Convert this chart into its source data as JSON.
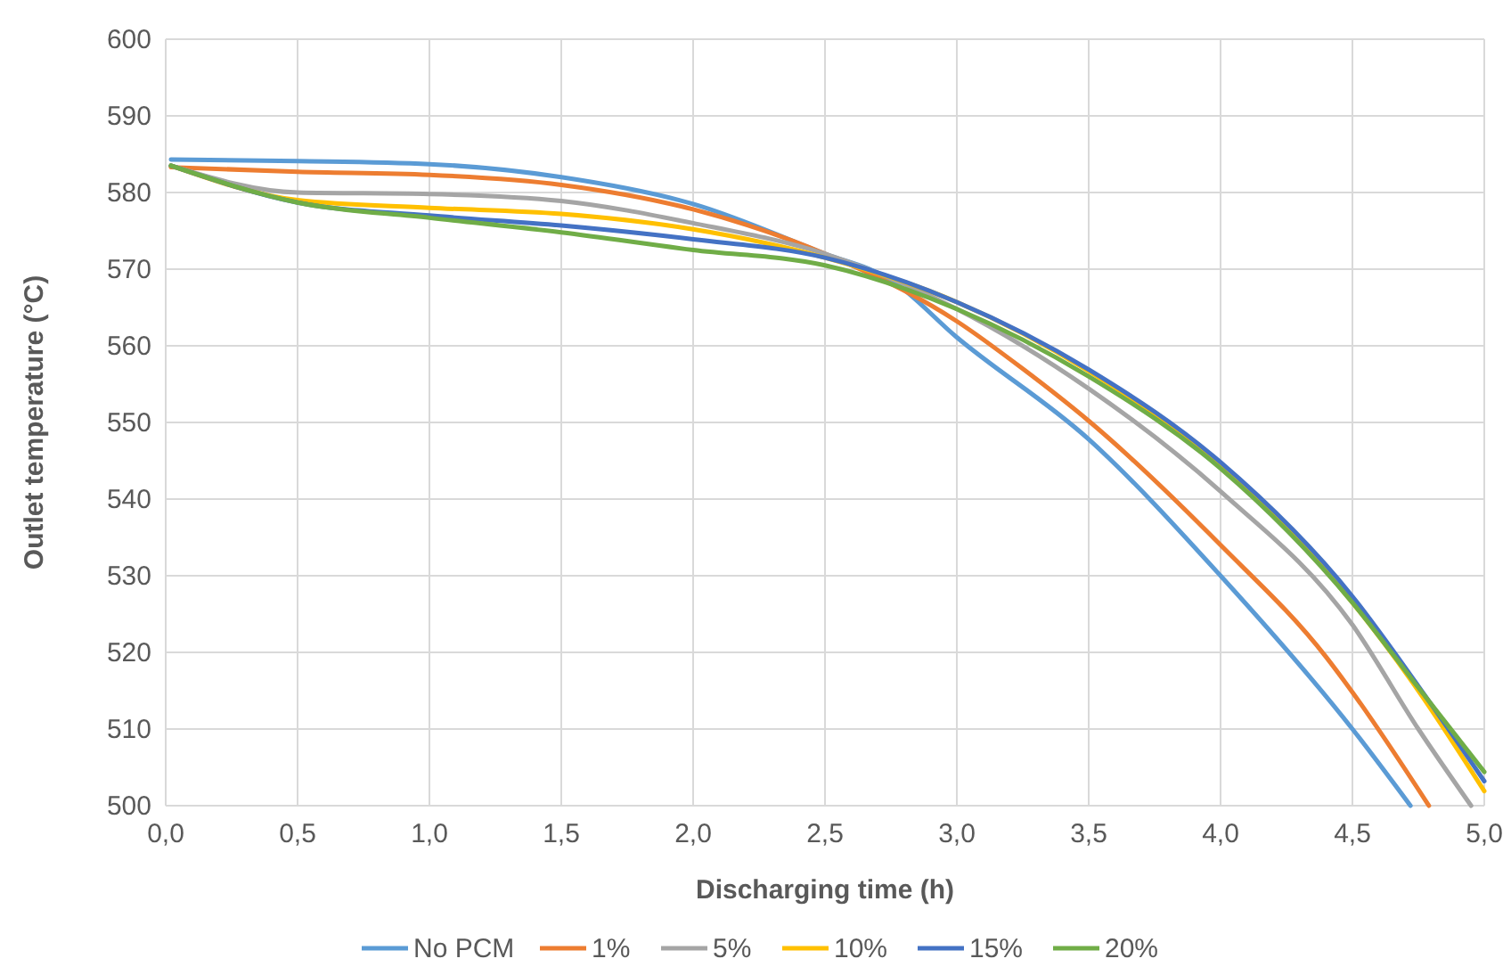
{
  "chart_data": {
    "type": "line",
    "xlabel": "Discharging time (h)",
    "ylabel": "Outlet temperature (°C)",
    "xlim": [
      0,
      5
    ],
    "ylim": [
      500,
      600
    ],
    "xticks": [
      {
        "value": 0,
        "label": "0,0"
      },
      {
        "value": 0.5,
        "label": "0,5"
      },
      {
        "value": 1,
        "label": "1,0"
      },
      {
        "value": 1.5,
        "label": "1,5"
      },
      {
        "value": 2,
        "label": "2,0"
      },
      {
        "value": 2.5,
        "label": "2,5"
      },
      {
        "value": 3,
        "label": "3,0"
      },
      {
        "value": 3.5,
        "label": "3,5"
      },
      {
        "value": 4,
        "label": "4,0"
      },
      {
        "value": 4.5,
        "label": "4,5"
      },
      {
        "value": 5,
        "label": "5,0"
      }
    ],
    "yticks": [
      500,
      510,
      520,
      530,
      540,
      550,
      560,
      570,
      580,
      590,
      600
    ],
    "grid": true,
    "legend": "bottom",
    "marker": "none",
    "line_style": "solid",
    "series": [
      {
        "name": "No PCM",
        "color": "#5b9bd5",
        "x": [
          0.02,
          0.5,
          1,
          1.5,
          2,
          2.5,
          2.75,
          3,
          3.5,
          4,
          4.5,
          4.72
        ],
        "values": [
          584.3,
          584.1,
          583.7,
          582,
          578.5,
          572,
          568.6,
          561.1,
          547.8,
          530,
          510,
          500
        ]
      },
      {
        "name": "1%",
        "color": "#ed7d31",
        "x": [
          0.02,
          0.5,
          1,
          1.5,
          2,
          2.5,
          3,
          3.25,
          3.5,
          4,
          4.4,
          4.5,
          4.79
        ],
        "values": [
          583.3,
          582.7,
          582.3,
          581,
          577.8,
          572,
          563.2,
          557,
          550.2,
          534,
          519.4,
          514.8,
          500
        ]
      },
      {
        "name": "5%",
        "color": "#a5a5a5",
        "x": [
          0.02,
          0.5,
          1,
          1.5,
          2,
          2.5,
          3,
          3.5,
          4,
          4.5,
          4.75,
          4.95
        ],
        "values": [
          583.5,
          580,
          579.8,
          578.9,
          576,
          572,
          564.8,
          554.4,
          541,
          523.6,
          510,
          500
        ]
      },
      {
        "name": "10%",
        "color": "#ffc000",
        "x": [
          0.02,
          0.5,
          1,
          1.5,
          2,
          2.5,
          3,
          3.5,
          4,
          4.5,
          4.75,
          5
        ],
        "values": [
          583.5,
          579,
          578,
          577.2,
          575.2,
          571.5,
          565.7,
          556.7,
          544.4,
          526.5,
          515,
          501.9
        ]
      },
      {
        "name": "15%",
        "color": "#4472c4",
        "x": [
          0.02,
          0.5,
          1,
          1.5,
          2,
          2.5,
          3,
          3.5,
          4,
          4.5,
          4.75,
          5
        ],
        "values": [
          583.5,
          578.7,
          577,
          575.7,
          573.9,
          571.5,
          565.7,
          556.9,
          544.8,
          527.3,
          515.6,
          503.2
        ]
      },
      {
        "name": "20%",
        "color": "#70ad47",
        "x": [
          0.02,
          0.5,
          1,
          1.5,
          2,
          2.5,
          3,
          3.5,
          4,
          4.5,
          4.75,
          5
        ],
        "values": [
          583.5,
          578.7,
          576.7,
          574.8,
          572.5,
          570.5,
          564.8,
          556,
          544,
          526.5,
          515.4,
          504.4
        ]
      }
    ]
  }
}
